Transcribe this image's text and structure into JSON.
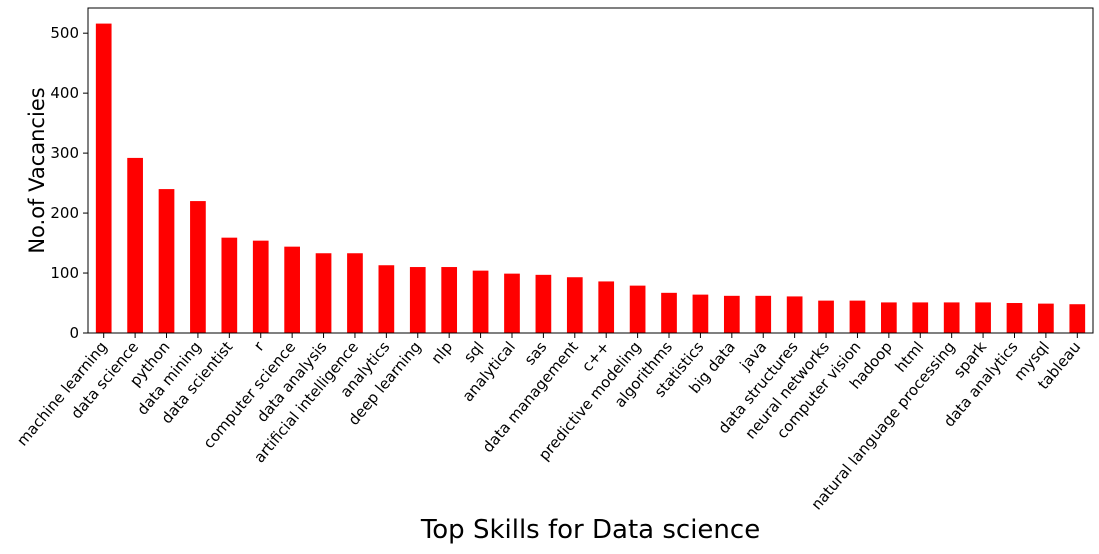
{
  "chart_data": {
    "type": "bar",
    "categories": [
      "machine learning",
      "data science",
      "python",
      "data mining",
      "data scientist",
      "r",
      "computer science",
      "data analysis",
      "artificial intelligence",
      "analytics",
      "deep learning",
      "nlp",
      "sql",
      "analytical",
      "sas",
      "data management",
      "c++",
      "predictive modeling",
      "algorithms",
      "statistics",
      "big data",
      "java",
      "data structures",
      "neural networks",
      "computer vision",
      "hadoop",
      "html",
      "natural language processing",
      "spark",
      "data analytics",
      "mysql",
      "tableau"
    ],
    "values": [
      516,
      292,
      240,
      220,
      159,
      154,
      144,
      133,
      133,
      113,
      110,
      110,
      104,
      99,
      97,
      93,
      86,
      79,
      67,
      64,
      62,
      62,
      61,
      54,
      54,
      51,
      51,
      51,
      51,
      50,
      49,
      48
    ],
    "title": "",
    "xlabel": "Top Skills for Data science",
    "ylabel": "No.of Vacancies",
    "ylim": [
      0,
      542
    ],
    "yticks": [
      0,
      100,
      200,
      300,
      400,
      500
    ],
    "grid": false,
    "bar_color": "#ff0000"
  }
}
